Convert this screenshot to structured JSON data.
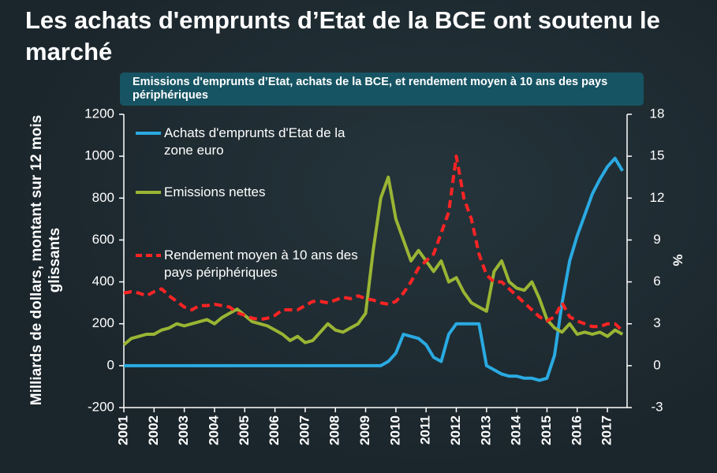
{
  "chart_data": {
    "type": "line",
    "title": "Les achats d'emprunts d’Etat de la BCE ont soutenu le marché",
    "subtitle": "Emissions d'emprunts d’Etat, achats de la BCE, et rendement moyen à 10 ans des pays périphériques",
    "ylabel": "Milliards de dollars, montant sur 12 mois glissants",
    "y2label": "%",
    "x": [
      2001,
      2001.25,
      2001.5,
      2001.75,
      2002,
      2002.25,
      2002.5,
      2002.75,
      2003,
      2003.25,
      2003.5,
      2003.75,
      2004,
      2004.25,
      2004.5,
      2004.75,
      2005,
      2005.25,
      2005.5,
      2005.75,
      2006,
      2006.25,
      2006.5,
      2006.75,
      2007,
      2007.25,
      2007.5,
      2007.75,
      2008,
      2008.25,
      2008.5,
      2008.75,
      2009,
      2009.25,
      2009.5,
      2009.75,
      2010,
      2010.25,
      2010.5,
      2010.75,
      2011,
      2011.25,
      2011.5,
      2011.75,
      2012,
      2012.25,
      2012.5,
      2012.75,
      2013,
      2013.25,
      2013.5,
      2013.75,
      2014,
      2014.25,
      2014.5,
      2014.75,
      2015,
      2015.25,
      2015.5,
      2015.75,
      2016,
      2016.25,
      2016.5,
      2016.75,
      2017,
      2017.25,
      2017.5
    ],
    "xlim": [
      2001,
      2017.65
    ],
    "xticks": [
      2001,
      2002,
      2003,
      2004,
      2005,
      2006,
      2007,
      2008,
      2009,
      2010,
      2011,
      2012,
      2013,
      2014,
      2015,
      2016,
      2017
    ],
    "ylim": [
      -200,
      1200
    ],
    "yticks": [
      -200,
      0,
      200,
      400,
      600,
      800,
      1000,
      1200
    ],
    "y2lim": [
      -3,
      18
    ],
    "y2ticks": [
      -3,
      0,
      3,
      6,
      9,
      12,
      15,
      18
    ],
    "legend": "upper left",
    "series": [
      {
        "name": "Achats d'emprunts d'Etat de la zone euro",
        "color": "#2aaae2",
        "values": [
          0,
          0,
          0,
          0,
          0,
          0,
          0,
          0,
          0,
          0,
          0,
          0,
          0,
          0,
          0,
          0,
          0,
          0,
          0,
          0,
          0,
          0,
          0,
          0,
          0,
          0,
          0,
          0,
          0,
          0,
          0,
          0,
          0,
          0,
          0,
          20,
          60,
          150,
          140,
          130,
          100,
          40,
          20,
          150,
          200,
          200,
          200,
          200,
          0,
          -20,
          -40,
          -50,
          -50,
          -60,
          -60,
          -70,
          -60,
          50,
          300,
          500,
          620,
          720,
          820,
          890,
          950,
          990,
          930
        ]
      },
      {
        "name": "Emissions nettes",
        "color": "#9ab533",
        "values": [
          100,
          130,
          140,
          150,
          150,
          170,
          180,
          200,
          190,
          200,
          210,
          220,
          200,
          230,
          250,
          270,
          240,
          210,
          200,
          190,
          170,
          150,
          120,
          140,
          110,
          120,
          160,
          200,
          170,
          160,
          180,
          200,
          250,
          550,
          800,
          900,
          700,
          600,
          500,
          550,
          500,
          450,
          500,
          400,
          420,
          350,
          300,
          280,
          260,
          450,
          500,
          400,
          370,
          360,
          400,
          320,
          220,
          180,
          160,
          200,
          150,
          160,
          150,
          160,
          140,
          170,
          150
        ]
      },
      {
        "name": "Rendement moyen à 10 ans des pays périphériques",
        "color": "#ff2424",
        "axis": "y2",
        "values": [
          5.2,
          5.3,
          5.2,
          5.0,
          5.3,
          5.5,
          5.0,
          4.6,
          4.2,
          4.0,
          4.3,
          4.3,
          4.4,
          4.3,
          4.2,
          3.8,
          3.6,
          3.4,
          3.3,
          3.4,
          3.6,
          4.0,
          4.0,
          4.0,
          4.3,
          4.6,
          4.6,
          4.5,
          4.7,
          4.9,
          4.8,
          5.0,
          4.8,
          4.7,
          4.5,
          4.4,
          4.6,
          5.2,
          6.0,
          7.0,
          7.5,
          8.0,
          9.5,
          11.0,
          15.0,
          12.0,
          10.5,
          8.0,
          6.5,
          6.0,
          6.0,
          5.5,
          5.0,
          4.5,
          4.0,
          3.5,
          3.2,
          3.5,
          4.5,
          3.5,
          3.2,
          3.0,
          2.8,
          2.8,
          3.0,
          3.0,
          2.5
        ]
      }
    ]
  }
}
